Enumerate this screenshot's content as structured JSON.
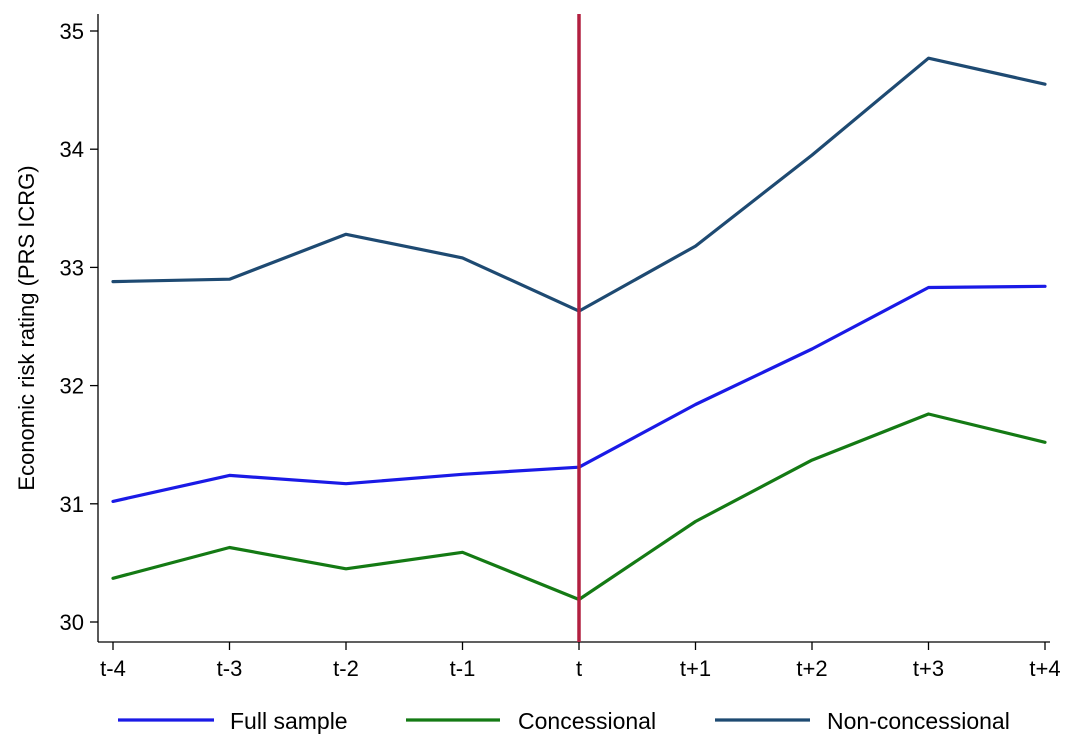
{
  "chart_data": {
    "type": "line",
    "title": "",
    "xlabel": "",
    "ylabel": "Economic risk rating (PRS ICRG)",
    "categories": [
      "t-4",
      "t-3",
      "t-2",
      "t-1",
      "t",
      "t+1",
      "t+2",
      "t+3",
      "t+4"
    ],
    "ylim": [
      30,
      35
    ],
    "yticks": [
      30,
      31,
      32,
      33,
      34,
      35
    ],
    "event_marker": {
      "category": "t",
      "color": "#b22040"
    },
    "grid": false,
    "legend_position": "bottom",
    "series": [
      {
        "name": "Full sample",
        "color": "#1a1ae6",
        "values": [
          31.02,
          31.24,
          31.17,
          31.25,
          31.31,
          31.84,
          32.31,
          32.83,
          32.84
        ]
      },
      {
        "name": "Concessional",
        "color": "#147a14",
        "values": [
          30.37,
          30.63,
          30.45,
          30.59,
          30.19,
          30.85,
          31.37,
          31.76,
          31.52
        ]
      },
      {
        "name": "Non-concessional",
        "color": "#1e4a72",
        "values": [
          32.88,
          32.9,
          33.28,
          33.08,
          32.63,
          33.18,
          33.95,
          34.77,
          34.55
        ]
      }
    ]
  }
}
